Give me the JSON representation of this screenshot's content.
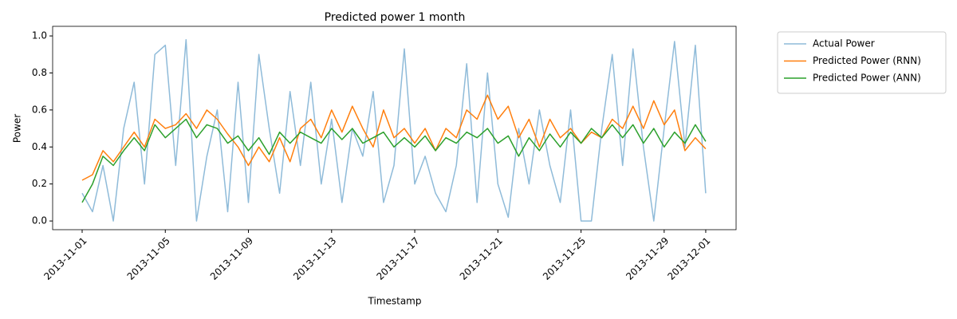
{
  "chart_data": {
    "type": "line",
    "title": "Predicted power 1 month",
    "x_label": "Timestamp",
    "y_label": "Power",
    "x": [
      0,
      0.5,
      1,
      1.5,
      2,
      2.5,
      3,
      3.5,
      4,
      4.5,
      5,
      5.5,
      6,
      6.5,
      7,
      7.5,
      8,
      8.5,
      9,
      9.5,
      10,
      10.5,
      11,
      11.5,
      12,
      12.5,
      13,
      13.5,
      14,
      14.5,
      15,
      15.5,
      16,
      16.5,
      17,
      17.5,
      18,
      18.5,
      19,
      19.5,
      20,
      20.5,
      21,
      21.5,
      22,
      22.5,
      23,
      23.5,
      24,
      24.5,
      25,
      25.5,
      26,
      26.5,
      27,
      27.5,
      28,
      28.5,
      29,
      29.5,
      30
    ],
    "series": [
      {
        "name": "Actual Power",
        "color": "#1f77b4",
        "opacity": 0.5,
        "values": [
          0.15,
          0.05,
          0.3,
          0.0,
          0.5,
          0.75,
          0.2,
          0.9,
          0.95,
          0.3,
          0.98,
          0.0,
          0.35,
          0.6,
          0.05,
          0.75,
          0.1,
          0.9,
          0.5,
          0.15,
          0.7,
          0.3,
          0.75,
          0.2,
          0.55,
          0.1,
          0.5,
          0.35,
          0.7,
          0.1,
          0.3,
          0.93,
          0.2,
          0.35,
          0.15,
          0.05,
          0.3,
          0.85,
          0.1,
          0.8,
          0.2,
          0.02,
          0.5,
          0.2,
          0.6,
          0.3,
          0.1,
          0.6,
          0.0,
          0.0,
          0.5,
          0.9,
          0.3,
          0.93,
          0.4,
          0.0,
          0.5,
          0.97,
          0.4,
          0.95,
          0.15
        ]
      },
      {
        "name": "Predicted Power (RNN)",
        "color": "#ff7f0e",
        "opacity": 1,
        "values": [
          0.22,
          0.25,
          0.38,
          0.32,
          0.4,
          0.48,
          0.4,
          0.55,
          0.5,
          0.52,
          0.58,
          0.5,
          0.6,
          0.55,
          0.47,
          0.4,
          0.3,
          0.4,
          0.32,
          0.45,
          0.32,
          0.5,
          0.55,
          0.45,
          0.6,
          0.48,
          0.62,
          0.5,
          0.4,
          0.6,
          0.45,
          0.5,
          0.42,
          0.5,
          0.38,
          0.5,
          0.45,
          0.6,
          0.55,
          0.68,
          0.55,
          0.62,
          0.45,
          0.55,
          0.4,
          0.55,
          0.45,
          0.5,
          0.42,
          0.48,
          0.45,
          0.55,
          0.5,
          0.62,
          0.5,
          0.65,
          0.52,
          0.6,
          0.38,
          0.45,
          0.39
        ]
      },
      {
        "name": "Predicted Power (ANN)",
        "color": "#2ca02c",
        "opacity": 1,
        "values": [
          0.1,
          0.2,
          0.35,
          0.3,
          0.38,
          0.45,
          0.38,
          0.52,
          0.45,
          0.5,
          0.55,
          0.45,
          0.52,
          0.5,
          0.42,
          0.46,
          0.38,
          0.45,
          0.36,
          0.48,
          0.42,
          0.48,
          0.45,
          0.42,
          0.5,
          0.44,
          0.5,
          0.42,
          0.45,
          0.48,
          0.4,
          0.45,
          0.4,
          0.46,
          0.38,
          0.45,
          0.42,
          0.48,
          0.45,
          0.5,
          0.42,
          0.46,
          0.35,
          0.45,
          0.38,
          0.47,
          0.4,
          0.48,
          0.42,
          0.5,
          0.45,
          0.52,
          0.45,
          0.52,
          0.42,
          0.5,
          0.4,
          0.48,
          0.42,
          0.52,
          0.43
        ]
      }
    ],
    "xlim": [
      -1.42,
      31.46
    ],
    "ylim": [
      -0.047,
      1.052
    ],
    "xticks": [
      {
        "value": 0,
        "label": "2013-11-01"
      },
      {
        "value": 4,
        "label": "2013-11-05"
      },
      {
        "value": 8,
        "label": "2013-11-09"
      },
      {
        "value": 12,
        "label": "2013-11-13"
      },
      {
        "value": 16,
        "label": "2013-11-17"
      },
      {
        "value": 20,
        "label": "2013-11-21"
      },
      {
        "value": 24,
        "label": "2013-11-25"
      },
      {
        "value": 28,
        "label": "2013-11-29"
      },
      {
        "value": 30,
        "label": "2013-12-01"
      }
    ],
    "yticks": [
      {
        "value": 0,
        "label": "0.0"
      },
      {
        "value": 0.2,
        "label": "0.2"
      },
      {
        "value": 0.4,
        "label": "0.4"
      },
      {
        "value": 0.6,
        "label": "0.6"
      },
      {
        "value": 0.8,
        "label": "0.8"
      },
      {
        "value": 1,
        "label": "1.0"
      }
    ],
    "legend": "outside-upper-right"
  }
}
